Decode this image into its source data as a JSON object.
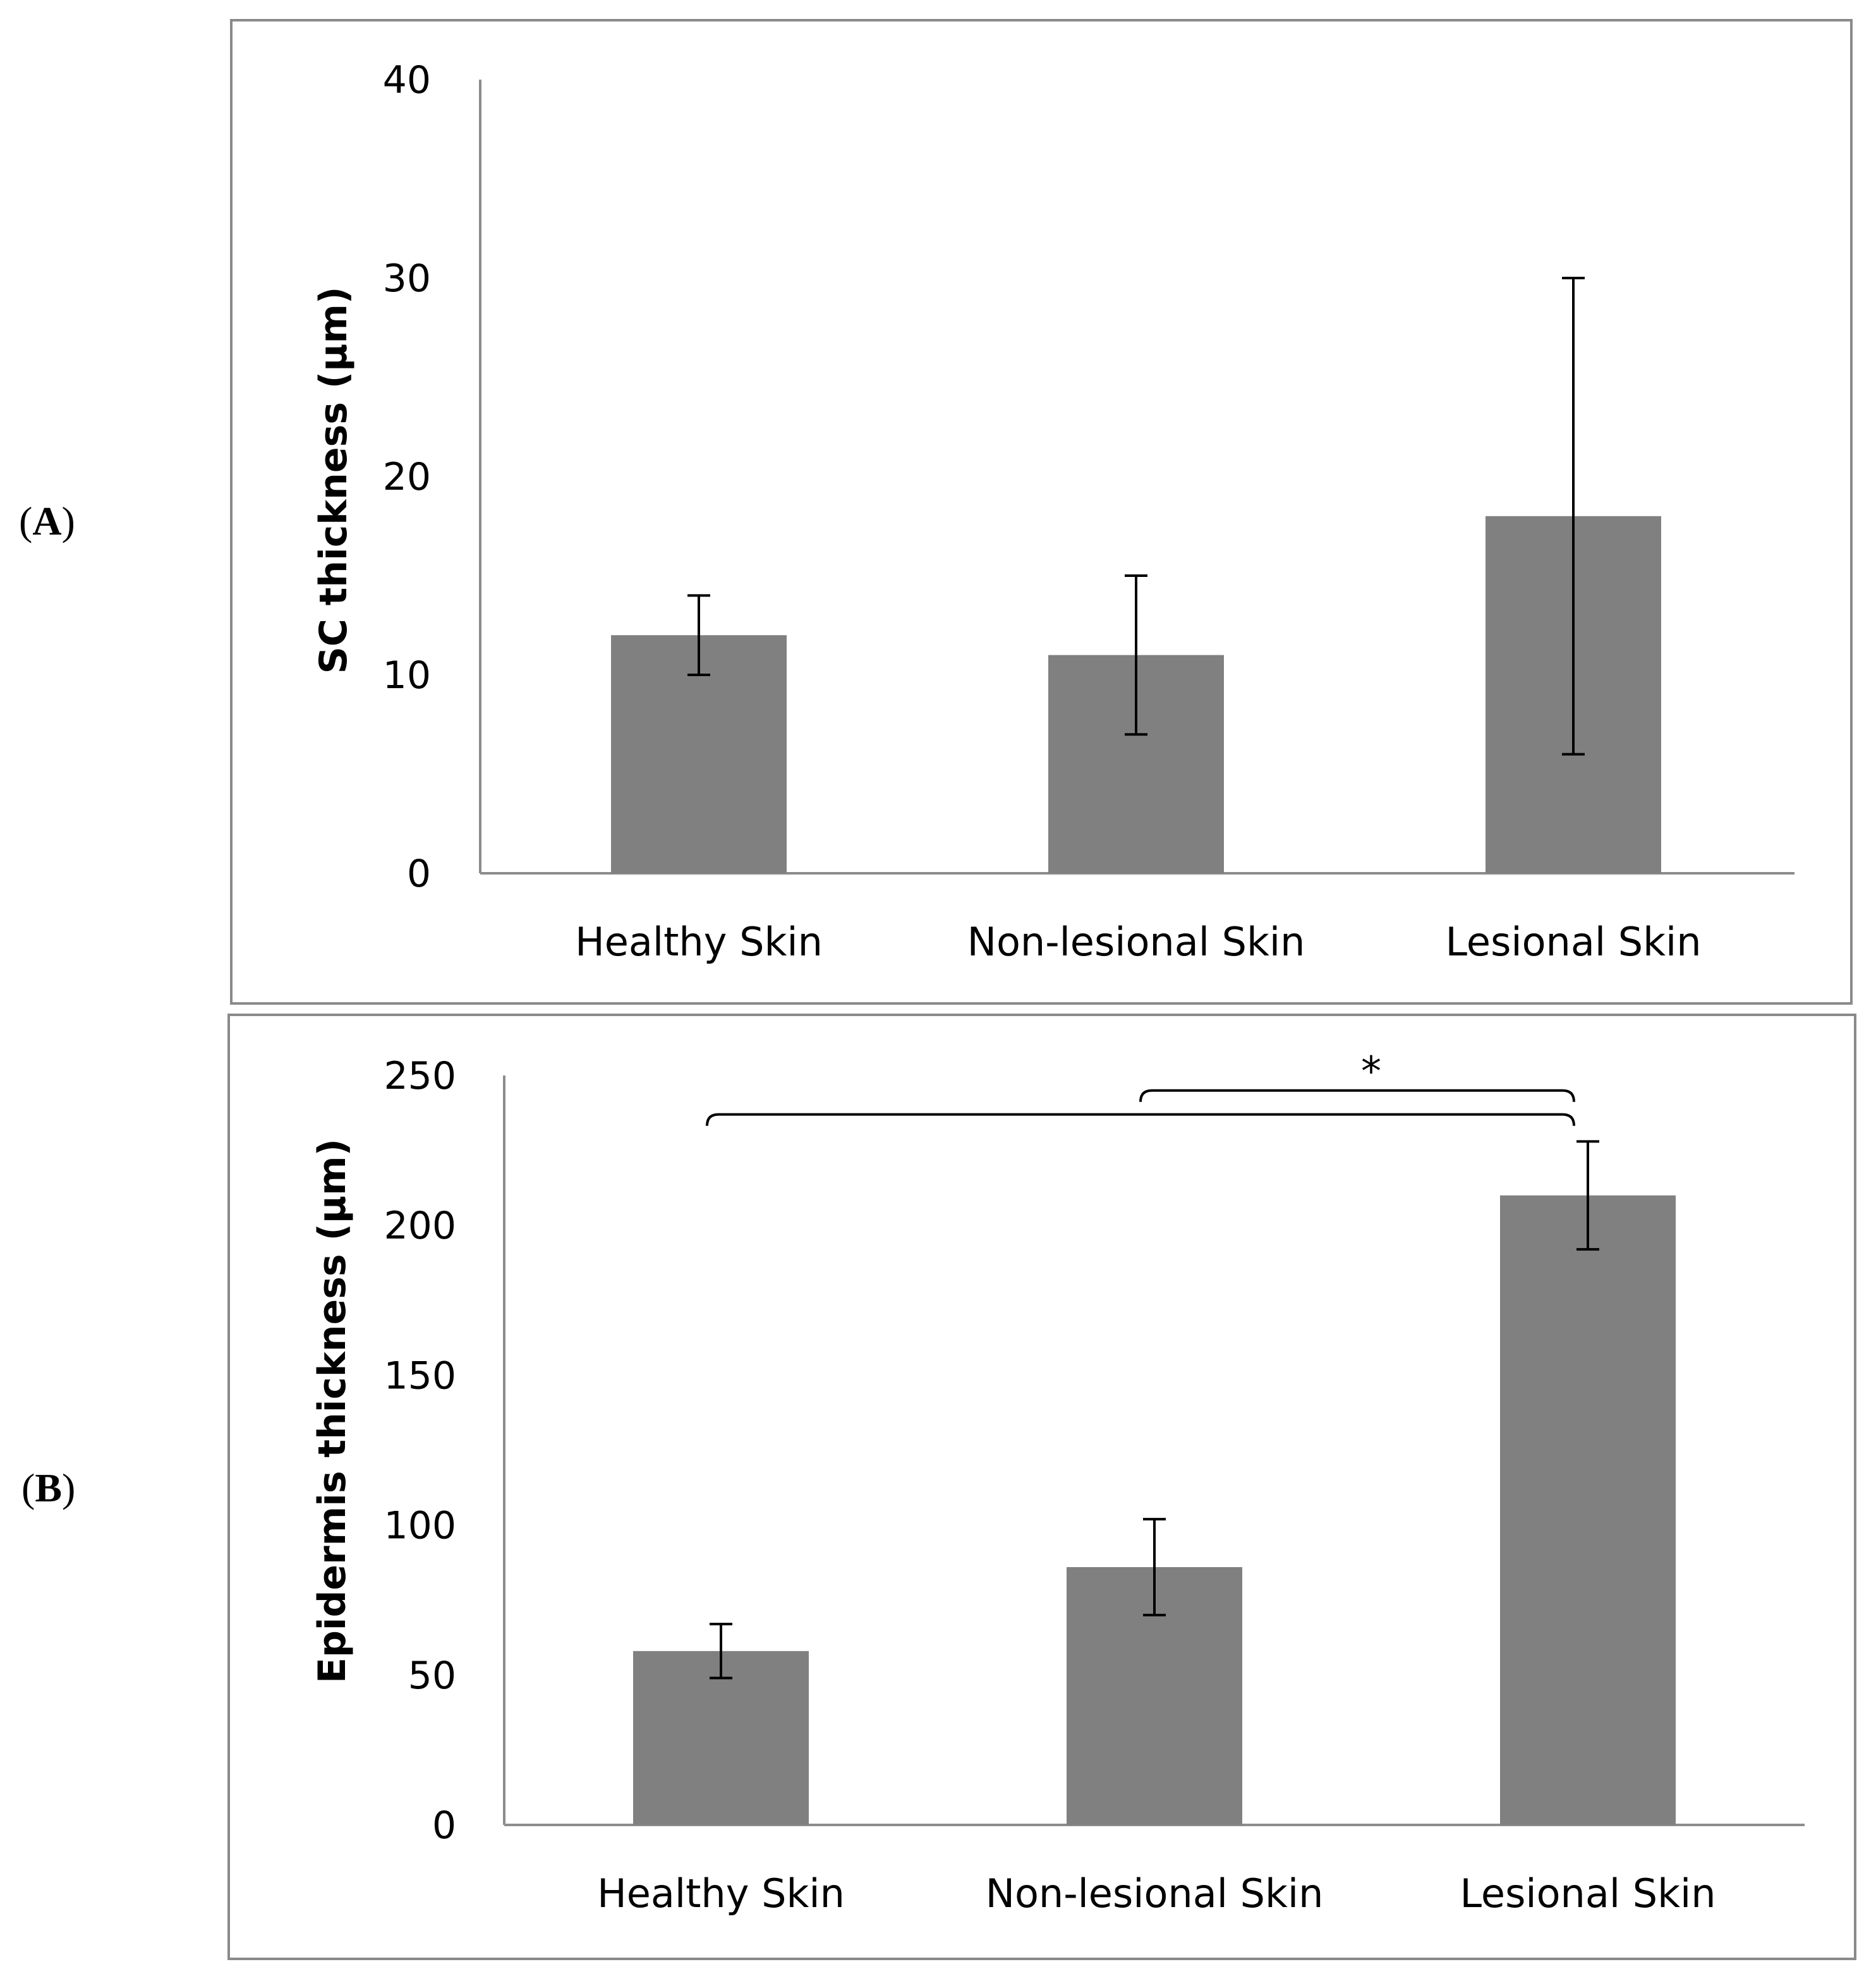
{
  "panel_labels": [
    {
      "open": "(",
      "letter": "A",
      "close": ")"
    },
    {
      "open": "(",
      "letter": "B",
      "close": ")"
    }
  ],
  "chart_data": [
    {
      "type": "bar",
      "title": "",
      "ylabel": "SC thickness (µm)",
      "xlabel": "",
      "categories": [
        "Healthy Skin",
        "Non-lesional Skin",
        "Lesional Skin"
      ],
      "values": [
        12,
        11,
        18
      ],
      "error_low": [
        10,
        7,
        6
      ],
      "error_high": [
        14,
        15,
        30
      ],
      "ylim": [
        0,
        40
      ],
      "yticks": [
        0,
        10,
        20,
        30,
        40
      ],
      "bar_color": "#808080",
      "annotations": []
    },
    {
      "type": "bar",
      "title": "",
      "ylabel": "Epidermis thickness (µm)",
      "xlabel": "",
      "categories": [
        "Healthy Skin",
        "Non-lesional Skin",
        "Lesional Skin"
      ],
      "values": [
        58,
        86,
        210
      ],
      "error_low": [
        49,
        70,
        192
      ],
      "error_high": [
        67,
        102,
        228
      ],
      "ylim": [
        0,
        250
      ],
      "yticks": [
        0,
        50,
        100,
        150,
        200,
        250
      ],
      "bar_color": "#808080",
      "annotations": [
        {
          "type": "significance",
          "label": "*",
          "from_category": 1,
          "to_category": 2,
          "y": 245
        },
        {
          "type": "significance",
          "label": "",
          "from_category": 0,
          "to_category": 2,
          "y": 237
        }
      ]
    }
  ]
}
